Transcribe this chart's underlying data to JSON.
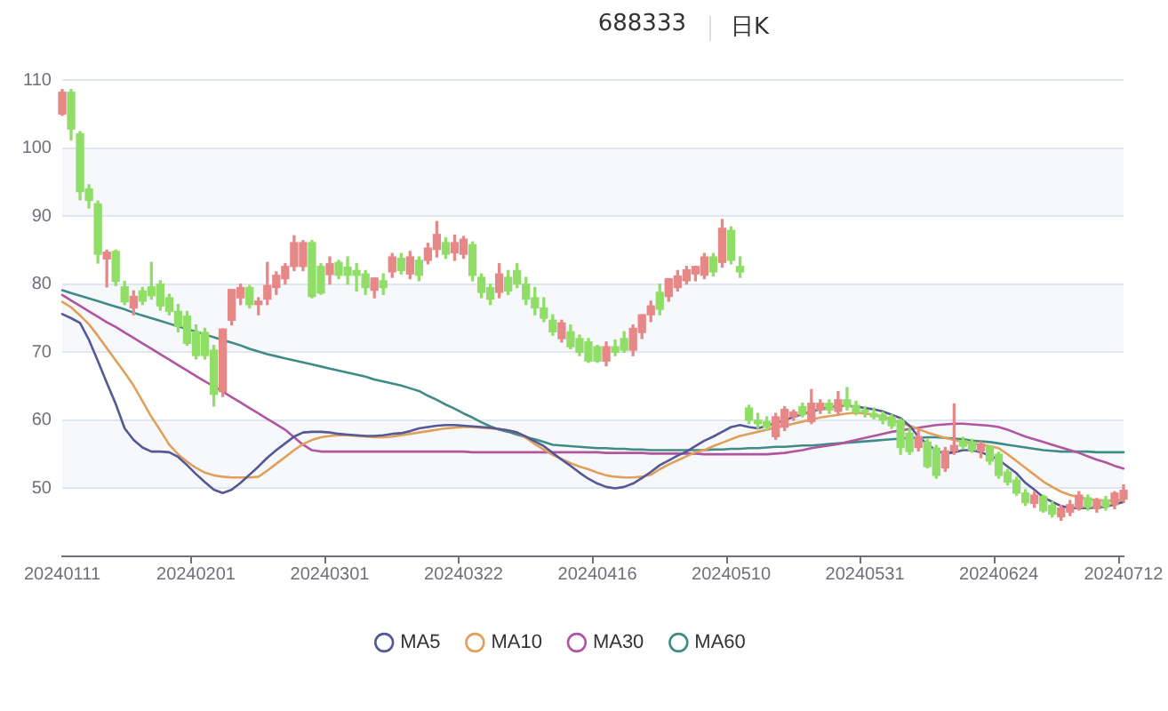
{
  "chart_data": {
    "type": "candlestick",
    "title": "688333",
    "subtitle": "日K",
    "categories": [
      "20240111",
      null,
      null,
      null,
      null,
      null,
      null,
      null,
      null,
      null,
      null,
      null,
      null,
      null,
      null,
      "20240201",
      null,
      null,
      null,
      null,
      null,
      null,
      null,
      null,
      null,
      null,
      null,
      null,
      null,
      null,
      "20240301",
      null,
      null,
      null,
      null,
      null,
      null,
      null,
      null,
      null,
      null,
      null,
      null,
      null,
      null,
      "20240322",
      null,
      null,
      null,
      null,
      null,
      null,
      null,
      null,
      null,
      null,
      null,
      null,
      null,
      null,
      "20240416",
      null,
      null,
      null,
      null,
      null,
      null,
      null,
      null,
      null,
      null,
      null,
      null,
      null,
      null,
      "20240510",
      null,
      null,
      null,
      null,
      null,
      null,
      null,
      null,
      null,
      null,
      null,
      null,
      null,
      null,
      "20240531",
      null,
      null,
      null,
      null,
      null,
      null,
      null,
      null,
      null,
      null,
      null,
      null,
      null,
      null,
      "20240624",
      null,
      null,
      null,
      null,
      null,
      null,
      null,
      null,
      null,
      null,
      null,
      null,
      null,
      "20240712"
    ],
    "ohlc": [
      [
        105.0,
        108.6,
        104.8,
        108.2
      ],
      [
        108.2,
        108.6,
        101.2,
        102.8
      ],
      [
        102.1,
        102.4,
        92.4,
        93.6
      ],
      [
        94.0,
        94.6,
        91.2,
        92.3
      ],
      [
        91.8,
        92.2,
        83.1,
        84.4
      ],
      [
        83.7,
        85.0,
        79.6,
        84.7
      ],
      [
        84.8,
        85.0,
        79.8,
        80.4
      ],
      [
        79.6,
        80.4,
        77.0,
        77.4
      ],
      [
        76.5,
        79.0,
        75.5,
        78.2
      ],
      [
        79.0,
        79.5,
        77.0,
        77.5
      ],
      [
        79.6,
        83.2,
        77.8,
        78.3
      ],
      [
        80.0,
        80.5,
        76.2,
        76.8
      ],
      [
        78.0,
        78.5,
        75.5,
        76.0
      ],
      [
        76.0,
        77.0,
        73.0,
        73.8
      ],
      [
        75.3,
        76.0,
        71.0,
        71.3
      ],
      [
        73.0,
        74.0,
        69.0,
        69.5
      ],
      [
        72.9,
        73.5,
        69.0,
        69.5
      ],
      [
        70.3,
        71.0,
        62.1,
        63.8
      ],
      [
        64.2,
        73.4,
        63.5,
        73.4
      ],
      [
        74.7,
        79.2,
        74.0,
        79.2
      ],
      [
        78.0,
        80.0,
        77.0,
        79.5
      ],
      [
        79.5,
        79.8,
        76.5,
        77.0
      ],
      [
        77.0,
        78.0,
        75.5,
        77.5
      ],
      [
        77.8,
        83.2,
        77.0,
        79.8
      ],
      [
        79.5,
        81.8,
        78.5,
        81.3
      ],
      [
        80.8,
        83.0,
        80.0,
        82.6
      ],
      [
        82.6,
        87.1,
        82.0,
        86.1
      ],
      [
        82.6,
        86.4,
        82.0,
        86.1
      ],
      [
        86.1,
        86.4,
        78.0,
        78.2
      ],
      [
        82.6,
        83.0,
        78.5,
        78.7
      ],
      [
        81.4,
        84.0,
        80.0,
        83.0
      ],
      [
        83.2,
        83.5,
        80.8,
        81.3
      ],
      [
        82.5,
        84.0,
        80.0,
        81.3
      ],
      [
        82.0,
        83.0,
        79.0,
        81.3
      ],
      [
        81.5,
        82.0,
        78.5,
        79.5
      ],
      [
        79.1,
        80.9,
        78.0,
        80.9
      ],
      [
        80.5,
        81.5,
        78.5,
        79.5
      ],
      [
        81.8,
        84.5,
        81.0,
        84.0
      ],
      [
        83.8,
        84.5,
        81.5,
        82.0
      ],
      [
        81.5,
        84.8,
        80.8,
        84.0
      ],
      [
        83.5,
        84.0,
        80.5,
        81.3
      ],
      [
        83.5,
        86.0,
        83.0,
        85.3
      ],
      [
        85.1,
        89.2,
        84.0,
        87.3
      ],
      [
        86.1,
        86.8,
        83.8,
        84.4
      ],
      [
        84.6,
        87.2,
        83.5,
        86.1
      ],
      [
        84.4,
        87.0,
        83.8,
        86.6
      ],
      [
        85.8,
        86.2,
        80.5,
        81.3
      ],
      [
        81.0,
        81.5,
        78.0,
        78.8
      ],
      [
        79.5,
        80.0,
        77.0,
        77.8
      ],
      [
        78.8,
        83.0,
        78.0,
        81.5
      ],
      [
        81.0,
        82.0,
        78.5,
        79.0
      ],
      [
        82.0,
        83.0,
        79.5,
        80.0
      ],
      [
        80.0,
        81.0,
        77.0,
        77.8
      ],
      [
        78.0,
        79.5,
        75.5,
        76.5
      ],
      [
        76.5,
        78.0,
        74.5,
        75.0
      ],
      [
        74.7,
        75.5,
        72.5,
        73.0
      ],
      [
        72.0,
        74.7,
        71.5,
        74.3
      ],
      [
        73.0,
        74.0,
        70.5,
        70.8
      ],
      [
        72.0,
        72.5,
        69.5,
        70.0
      ],
      [
        71.5,
        72.0,
        68.5,
        68.7
      ],
      [
        70.8,
        71.0,
        68.5,
        68.7
      ],
      [
        68.7,
        71.5,
        68.0,
        70.8
      ],
      [
        70.8,
        71.8,
        69.5,
        70.0
      ],
      [
        72.0,
        73.0,
        70.0,
        70.3
      ],
      [
        70.3,
        74.0,
        69.5,
        73.5
      ],
      [
        72.9,
        75.5,
        72.0,
        75.5
      ],
      [
        75.5,
        77.5,
        74.5,
        76.8
      ],
      [
        78.8,
        80.0,
        75.5,
        76.3
      ],
      [
        78.2,
        80.8,
        77.5,
        80.8
      ],
      [
        79.5,
        82.0,
        79.0,
        81.2
      ],
      [
        80.5,
        82.6,
        80.0,
        82.1
      ],
      [
        81.5,
        82.6,
        80.5,
        82.6
      ],
      [
        81.3,
        84.5,
        80.8,
        84.0
      ],
      [
        84.0,
        84.5,
        81.2,
        81.8
      ],
      [
        83.2,
        89.5,
        82.5,
        88.2
      ],
      [
        87.9,
        88.4,
        83.0,
        83.5
      ],
      [
        82.6,
        84.0,
        81.0,
        81.8
      ],
      [
        61.8,
        62.2,
        59.5,
        60.0
      ],
      [
        60.0,
        61.0,
        58.8,
        59.5
      ],
      [
        59.8,
        60.5,
        58.5,
        59.0
      ],
      [
        57.6,
        61.0,
        57.2,
        60.5
      ],
      [
        59.0,
        62.0,
        58.5,
        61.6
      ],
      [
        60.5,
        61.5,
        60.0,
        61.2
      ],
      [
        62.0,
        62.5,
        60.5,
        60.8
      ],
      [
        59.8,
        64.5,
        59.5,
        62.5
      ],
      [
        61.5,
        63.0,
        61.0,
        62.5
      ],
      [
        62.5,
        63.0,
        61.0,
        61.5
      ],
      [
        61.3,
        64.2,
        60.8,
        63.0
      ],
      [
        63.0,
        64.8,
        61.5,
        62.0
      ],
      [
        62.2,
        62.8,
        60.8,
        61.2
      ],
      [
        61.5,
        62.0,
        60.5,
        61.2
      ],
      [
        61.0,
        61.8,
        60.2,
        60.5
      ],
      [
        60.8,
        61.2,
        59.5,
        60.0
      ],
      [
        60.5,
        60.8,
        58.8,
        59.2
      ],
      [
        60.0,
        60.2,
        55.0,
        56.0
      ],
      [
        58.1,
        58.8,
        55.0,
        55.4
      ],
      [
        56.0,
        58.5,
        55.5,
        57.6
      ],
      [
        56.8,
        57.2,
        53.0,
        53.2
      ],
      [
        55.9,
        56.3,
        51.5,
        51.9
      ],
      [
        53.0,
        56.0,
        52.5,
        55.5
      ],
      [
        55.5,
        62.4,
        55.0,
        56.3
      ],
      [
        57.0,
        57.5,
        55.8,
        56.2
      ],
      [
        56.8,
        57.2,
        55.3,
        55.6
      ],
      [
        55.5,
        56.8,
        54.5,
        56.5
      ],
      [
        56.0,
        56.3,
        53.5,
        54.0
      ],
      [
        55.0,
        55.3,
        51.5,
        51.9
      ],
      [
        52.4,
        52.8,
        50.5,
        50.9
      ],
      [
        51.2,
        51.6,
        49.0,
        49.3
      ],
      [
        49.3,
        49.8,
        47.5,
        47.9
      ],
      [
        47.8,
        49.5,
        47.2,
        49.0
      ],
      [
        48.8,
        49.0,
        46.5,
        46.7
      ],
      [
        47.5,
        48.0,
        45.8,
        46.2
      ],
      [
        45.8,
        47.5,
        45.3,
        47.1
      ],
      [
        46.5,
        48.2,
        46.0,
        47.6
      ],
      [
        47.1,
        49.5,
        46.8,
        49.0
      ],
      [
        48.6,
        49.0,
        46.8,
        47.2
      ],
      [
        47.0,
        48.5,
        46.5,
        48.2
      ],
      [
        48.3,
        48.8,
        46.8,
        47.3
      ],
      [
        47.6,
        49.5,
        47.0,
        49.3
      ],
      [
        48.4,
        50.5,
        48.0,
        49.7
      ]
    ],
    "colors": [
      "#e68888",
      "#90de68",
      "#90de68",
      "#90de68",
      "#90de68",
      "#e68888",
      "#90de68",
      "#90de68",
      "#e68888",
      "#90de68",
      "#90de68",
      "#90de68",
      "#90de68",
      "#90de68",
      "#90de68",
      "#90de68",
      "#90de68",
      "#90de68",
      "#e68888",
      "#e68888",
      "#e68888",
      "#90de68",
      "#e68888",
      "#e68888",
      "#e68888",
      "#e68888",
      "#e68888",
      "#e68888",
      "#90de68",
      "#90de68",
      "#e68888",
      "#90de68",
      "#90de68",
      "#90de68",
      "#90de68",
      "#e68888",
      "#90de68",
      "#e68888",
      "#90de68",
      "#e68888",
      "#90de68",
      "#e68888",
      "#e68888",
      "#90de68",
      "#e68888",
      "#e68888",
      "#90de68",
      "#90de68",
      "#90de68",
      "#e68888",
      "#90de68",
      "#90de68",
      "#90de68",
      "#90de68",
      "#90de68",
      "#90de68",
      "#e68888",
      "#90de68",
      "#90de68",
      "#90de68",
      "#90de68",
      "#e68888",
      "#90de68",
      "#90de68",
      "#e68888",
      "#e68888",
      "#e68888",
      "#90de68",
      "#e68888",
      "#e68888",
      "#e68888",
      "#e68888",
      "#e68888",
      "#90de68",
      "#e68888",
      "#90de68",
      "#90de68",
      "#90de68",
      "#90de68",
      "#90de68",
      "#e68888",
      "#e68888",
      "#e68888",
      "#90de68",
      "#e68888",
      "#e68888",
      "#90de68",
      "#e68888",
      "#90de68",
      "#90de68",
      "#90de68",
      "#90de68",
      "#90de68",
      "#90de68",
      "#90de68",
      "#90de68",
      "#e68888",
      "#90de68",
      "#90de68",
      "#e68888",
      "#e68888",
      "#90de68",
      "#90de68",
      "#e68888",
      "#90de68",
      "#90de68",
      "#90de68",
      "#90de68",
      "#90de68",
      "#e68888",
      "#90de68",
      "#90de68",
      "#e68888",
      "#e68888",
      "#e68888",
      "#90de68",
      "#e68888",
      "#90de68",
      "#e68888",
      "#e68888"
    ],
    "series": [
      {
        "name": "MA5",
        "type": "line",
        "color": "#545894",
        "values": [
          75.6,
          75.0,
          74.3,
          71.8,
          68.7,
          65.5,
          62.4,
          58.8,
          57.1,
          56.0,
          55.4,
          55.4,
          55.3,
          54.6,
          53.4,
          52.1,
          50.9,
          49.8,
          49.3,
          49.8,
          50.8,
          52.0,
          53.2,
          54.5,
          55.6,
          56.6,
          57.6,
          58.2,
          58.3,
          58.3,
          58.2,
          58.0,
          57.9,
          57.8,
          57.7,
          57.7,
          57.8,
          58.0,
          58.1,
          58.4,
          58.8,
          59.0,
          59.2,
          59.3,
          59.3,
          59.2,
          59.1,
          59.0,
          58.9,
          58.7,
          58.5,
          58.2,
          57.6,
          56.9,
          56.2,
          55.2,
          54.2,
          53.3,
          52.3,
          51.4,
          50.7,
          50.2,
          50.0,
          50.2,
          50.7,
          51.5,
          52.4,
          53.4,
          54.1,
          54.8,
          55.4,
          56.2,
          57.0,
          57.6,
          58.3,
          59.0,
          59.3,
          59.0,
          58.8,
          59.2,
          59.6,
          60.0,
          60.5,
          60.9,
          61.3,
          61.6,
          61.9,
          62.1,
          62.1,
          62.0,
          61.8,
          61.6,
          61.3,
          60.8,
          60.3,
          59.2,
          57.6,
          56.5,
          55.5,
          55.1,
          55.3,
          55.6,
          55.6,
          55.3,
          54.8,
          54.2,
          53.2,
          52.2,
          50.8,
          49.8,
          48.7,
          48.0,
          47.4,
          47.1,
          47.1,
          47.1,
          47.2,
          47.3,
          47.6,
          48.0
        ]
      },
      {
        "name": "MA10",
        "type": "line",
        "color": "#e0a05a",
        "values": [
          77.4,
          76.6,
          75.4,
          74.1,
          72.4,
          70.6,
          68.8,
          67.0,
          65.1,
          62.8,
          60.5,
          58.5,
          56.4,
          55.0,
          53.9,
          53.0,
          52.3,
          51.9,
          51.7,
          51.6,
          51.6,
          51.6,
          51.7,
          52.6,
          53.6,
          54.6,
          55.6,
          56.5,
          57.1,
          57.5,
          57.7,
          57.8,
          57.8,
          57.7,
          57.6,
          57.5,
          57.5,
          57.6,
          57.8,
          58.0,
          58.2,
          58.4,
          58.6,
          58.8,
          58.9,
          59.0,
          59.0,
          58.9,
          58.8,
          58.7,
          58.5,
          58.2,
          57.4,
          56.5,
          55.7,
          54.9,
          54.3,
          53.7,
          53.2,
          52.8,
          52.3,
          51.9,
          51.7,
          51.6,
          51.6,
          51.7,
          52.0,
          52.8,
          53.5,
          54.1,
          54.7,
          55.3,
          55.6,
          56.2,
          56.7,
          57.2,
          57.7,
          58.0,
          58.3,
          58.6,
          58.9,
          59.2,
          59.5,
          59.8,
          60.1,
          60.4,
          60.6,
          60.8,
          61.0,
          61.1,
          61.0,
          60.8,
          60.5,
          60.1,
          59.6,
          59.2,
          58.7,
          58.2,
          57.8,
          57.4,
          57.1,
          56.8,
          56.6,
          56.4,
          56.2,
          55.9,
          55.0,
          54.0,
          53.0,
          52.0,
          51.0,
          50.2,
          49.5,
          49.0,
          48.7,
          48.4,
          48.3,
          48.2,
          48.2,
          48.2
        ]
      },
      {
        "name": "MA30",
        "type": "line",
        "color": "#b0559f",
        "values": [
          78.4,
          77.6,
          76.8,
          76.0,
          75.2,
          74.4,
          73.7,
          72.9,
          72.1,
          71.3,
          70.5,
          69.7,
          68.9,
          68.1,
          67.3,
          66.5,
          65.7,
          65.0,
          64.2,
          63.4,
          62.6,
          61.8,
          61.0,
          60.2,
          59.4,
          58.6,
          57.5,
          56.4,
          55.6,
          55.4,
          55.4,
          55.4,
          55.4,
          55.4,
          55.4,
          55.4,
          55.4,
          55.4,
          55.4,
          55.4,
          55.4,
          55.4,
          55.4,
          55.4,
          55.4,
          55.4,
          55.3,
          55.3,
          55.3,
          55.3,
          55.3,
          55.3,
          55.3,
          55.3,
          55.3,
          55.3,
          55.3,
          55.3,
          55.3,
          55.3,
          55.3,
          55.2,
          55.2,
          55.2,
          55.2,
          55.2,
          55.1,
          55.1,
          55.1,
          55.1,
          55.1,
          55.1,
          55.0,
          55.0,
          55.0,
          55.0,
          55.0,
          55.0,
          55.0,
          55.0,
          55.1,
          55.2,
          55.4,
          55.6,
          55.9,
          56.1,
          56.3,
          56.5,
          56.8,
          57.1,
          57.4,
          57.7,
          58.0,
          58.3,
          58.5,
          58.7,
          58.9,
          59.1,
          59.3,
          59.4,
          59.5,
          59.5,
          59.4,
          59.3,
          59.2,
          59.0,
          58.6,
          58.1,
          57.6,
          57.2,
          56.8,
          56.4,
          56.0,
          55.6,
          55.2,
          54.7,
          54.2,
          53.8,
          53.3,
          52.9
        ]
      },
      {
        "name": "MA60",
        "type": "line",
        "color": "#3f8c86",
        "values": [
          79.1,
          78.7,
          78.3,
          77.9,
          77.5,
          77.1,
          76.7,
          76.3,
          75.8,
          75.4,
          75.0,
          74.6,
          74.2,
          73.8,
          73.4,
          73.0,
          72.6,
          72.2,
          71.8,
          71.4,
          71.0,
          70.5,
          70.1,
          69.7,
          69.4,
          69.1,
          68.8,
          68.5,
          68.2,
          67.9,
          67.6,
          67.3,
          67.0,
          66.7,
          66.4,
          66.0,
          65.7,
          65.4,
          65.1,
          64.7,
          64.3,
          63.6,
          63.0,
          62.3,
          61.7,
          61.0,
          60.4,
          59.7,
          59.1,
          58.6,
          58.3,
          57.9,
          57.5,
          57.2,
          56.8,
          56.4,
          56.3,
          56.2,
          56.1,
          56.0,
          55.9,
          55.9,
          55.8,
          55.8,
          55.7,
          55.7,
          55.6,
          55.6,
          55.6,
          55.6,
          55.6,
          55.6,
          55.6,
          55.7,
          55.7,
          55.8,
          55.8,
          55.9,
          55.9,
          56.0,
          56.1,
          56.1,
          56.2,
          56.3,
          56.3,
          56.4,
          56.5,
          56.6,
          56.7,
          56.8,
          56.9,
          57.0,
          57.1,
          57.2,
          57.3,
          57.4,
          57.4,
          57.5,
          57.5,
          57.4,
          57.3,
          57.2,
          57.0,
          56.9,
          56.8,
          56.6,
          56.4,
          56.2,
          56.0,
          55.8,
          55.6,
          55.5,
          55.4,
          55.4,
          55.4,
          55.4,
          55.3,
          55.3,
          55.3,
          55.3
        ]
      }
    ],
    "ylim": [
      40,
      110
    ],
    "yticks": [
      50,
      60,
      70,
      80,
      90,
      100,
      110
    ],
    "grid": "y",
    "legend": "bottom"
  }
}
